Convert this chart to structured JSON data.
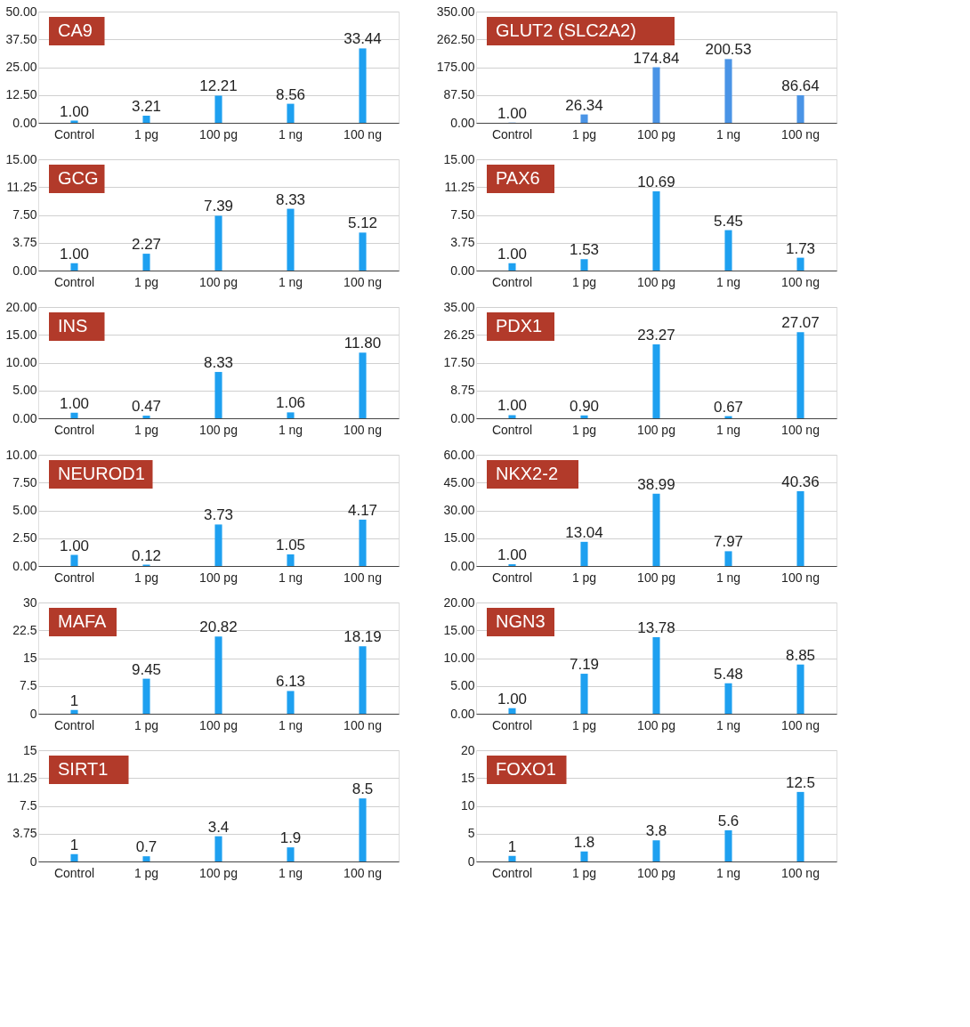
{
  "chart_data": [
    {
      "type": "bar",
      "title": "CA9",
      "categories": [
        "Control",
        "1 pg",
        "100 pg",
        "1 ng",
        "100 ng"
      ],
      "values": [
        1.0,
        3.21,
        12.21,
        8.56,
        33.44
      ],
      "value_labels": [
        "1.00",
        "3.21",
        "12.21",
        "8.56",
        "33.44"
      ],
      "color": "#1ea0f0",
      "ylim": [
        0,
        50
      ],
      "yticks": [
        {
          "value": 0,
          "label": "0.00"
        },
        {
          "value": 12.5,
          "label": "12.50"
        },
        {
          "value": 25,
          "label": "25.00"
        },
        {
          "value": 37.5,
          "label": "37.50"
        },
        {
          "value": 50,
          "label": "50.00"
        }
      ],
      "grid": "y"
    },
    {
      "type": "bar",
      "title": "GCG",
      "categories": [
        "Control",
        "1 pg",
        "100 pg",
        "1 ng",
        "100 ng"
      ],
      "values": [
        1.0,
        2.27,
        7.39,
        8.33,
        5.12
      ],
      "value_labels": [
        "1.00",
        "2.27",
        "7.39",
        "8.33",
        "5.12"
      ],
      "color": "#1ea0f0",
      "ylim": [
        0,
        15
      ],
      "yticks": [
        {
          "value": 0,
          "label": "0.00"
        },
        {
          "value": 3.75,
          "label": "3.75"
        },
        {
          "value": 7.5,
          "label": "7.50"
        },
        {
          "value": 11.25,
          "label": "11.25"
        },
        {
          "value": 15,
          "label": "15.00"
        }
      ],
      "grid": "y"
    },
    {
      "type": "bar",
      "title": "INS",
      "categories": [
        "Control",
        "1 pg",
        "100 pg",
        "1 ng",
        "100 ng"
      ],
      "values": [
        1.0,
        0.47,
        8.33,
        1.06,
        11.8
      ],
      "value_labels": [
        "1.00",
        "0.47",
        "8.33",
        "1.06",
        "11.80"
      ],
      "color": "#1ea0f0",
      "ylim": [
        0,
        20
      ],
      "yticks": [
        {
          "value": 0,
          "label": "0.00"
        },
        {
          "value": 5,
          "label": "5.00"
        },
        {
          "value": 10,
          "label": "10.00"
        },
        {
          "value": 15,
          "label": "15.00"
        },
        {
          "value": 20,
          "label": "20.00"
        }
      ],
      "grid": "y"
    },
    {
      "type": "bar",
      "title": "NEUROD1",
      "categories": [
        "Control",
        "1 pg",
        "100 pg",
        "1 ng",
        "100 ng"
      ],
      "values": [
        1.0,
        0.12,
        3.73,
        1.05,
        4.17
      ],
      "value_labels": [
        "1.00",
        "0.12",
        "3.73",
        "1.05",
        "4.17"
      ],
      "color": "#1ea0f0",
      "ylim": [
        0,
        10
      ],
      "yticks": [
        {
          "value": 0,
          "label": "0.00"
        },
        {
          "value": 2.5,
          "label": "2.50"
        },
        {
          "value": 5,
          "label": "5.00"
        },
        {
          "value": 7.5,
          "label": "7.50"
        },
        {
          "value": 10,
          "label": "10.00"
        }
      ],
      "grid": "y"
    },
    {
      "type": "bar",
      "title": "MAFA",
      "categories": [
        "Control",
        "1 pg",
        "100 pg",
        "1 ng",
        "100 ng"
      ],
      "values": [
        1,
        9.45,
        20.82,
        6.13,
        18.19
      ],
      "value_labels": [
        "1",
        "9.45",
        "20.82",
        "6.13",
        "18.19"
      ],
      "color": "#1ea0f0",
      "ylim": [
        0,
        30
      ],
      "yticks": [
        0,
        7.5,
        15,
        22.5,
        30
      ],
      "grid": "y"
    },
    {
      "type": "bar",
      "title": "SIRT1",
      "categories": [
        "Control",
        "1 pg",
        "100 pg",
        "1 ng",
        "100 ng"
      ],
      "values": [
        1,
        0.7,
        3.4,
        1.9,
        8.5
      ],
      "value_labels": [
        "1",
        "0.7",
        "3.4",
        "1.9",
        "8.5"
      ],
      "color": "#1ea0f0",
      "ylim": [
        0,
        15
      ],
      "yticks": [
        0,
        3.75,
        7.5,
        11.25,
        15
      ],
      "grid": "y"
    },
    {
      "type": "bar",
      "title": "GLUT2 (SLC2A2)",
      "categories": [
        "Control",
        "1 pg",
        "100 pg",
        "1 ng",
        "100 ng"
      ],
      "values": [
        1.0,
        26.34,
        174.84,
        200.53,
        86.64
      ],
      "value_labels": [
        "1.00",
        "26.34",
        "174.84",
        "200.53",
        "86.64"
      ],
      "color": "#4a94e6",
      "ylim": [
        0,
        350
      ],
      "yticks": [
        {
          "value": 0,
          "label": "0.00"
        },
        {
          "value": 87.5,
          "label": "87.50"
        },
        {
          "value": 175,
          "label": "175.00"
        },
        {
          "value": 262.5,
          "label": "262.50"
        },
        {
          "value": 350,
          "label": "350.00"
        }
      ],
      "grid": "y"
    },
    {
      "type": "bar",
      "title": "PAX6",
      "categories": [
        "Control",
        "1 pg",
        "100 pg",
        "1 ng",
        "100 ng"
      ],
      "values": [
        1.0,
        1.53,
        10.69,
        5.45,
        1.73
      ],
      "value_labels": [
        "1.00",
        "1.53",
        "10.69",
        "5.45",
        "1.73"
      ],
      "color": "#1ea0f0",
      "ylim": [
        0,
        15
      ],
      "yticks": [
        {
          "value": 0,
          "label": "0.00"
        },
        {
          "value": 3.75,
          "label": "3.75"
        },
        {
          "value": 7.5,
          "label": "7.50"
        },
        {
          "value": 11.25,
          "label": "11.25"
        },
        {
          "value": 15,
          "label": "15.00"
        }
      ],
      "grid": "y"
    },
    {
      "type": "bar",
      "title": "PDX1",
      "categories": [
        "Control",
        "1 pg",
        "100 pg",
        "1 ng",
        "100 ng"
      ],
      "values": [
        1.0,
        0.9,
        23.27,
        0.67,
        27.07
      ],
      "value_labels": [
        "1.00",
        "0.90",
        "23.27",
        "0.67",
        "27.07"
      ],
      "color": "#1ea0f0",
      "ylim": [
        0,
        35
      ],
      "yticks": [
        {
          "value": 0,
          "label": "0.00"
        },
        {
          "value": 8.75,
          "label": "8.75"
        },
        {
          "value": 17.5,
          "label": "17.50"
        },
        {
          "value": 26.25,
          "label": "26.25"
        },
        {
          "value": 35,
          "label": "35.00"
        }
      ],
      "grid": "y"
    },
    {
      "type": "bar",
      "title": "NKX2-2",
      "categories": [
        "Control",
        "1 pg",
        "100 pg",
        "1 ng",
        "100 ng"
      ],
      "values": [
        1.0,
        13.04,
        38.99,
        7.97,
        40.36
      ],
      "value_labels": [
        "1.00",
        "13.04",
        "38.99",
        "7.97",
        "40.36"
      ],
      "color": "#1ea0f0",
      "ylim": [
        0,
        60
      ],
      "yticks": [
        {
          "value": 0,
          "label": "0.00"
        },
        {
          "value": 15,
          "label": "15.00"
        },
        {
          "value": 30,
          "label": "30.00"
        },
        {
          "value": 45,
          "label": "45.00"
        },
        {
          "value": 60,
          "label": "60.00"
        }
      ],
      "grid": "y"
    },
    {
      "type": "bar",
      "title": "NGN3",
      "categories": [
        "Control",
        "1 pg",
        "100 pg",
        "1 ng",
        "100 ng"
      ],
      "values": [
        1.0,
        7.19,
        13.78,
        5.48,
        8.85
      ],
      "value_labels": [
        "1.00",
        "7.19",
        "13.78",
        "5.48",
        "8.85"
      ],
      "color": "#1ea0f0",
      "ylim": [
        0,
        20
      ],
      "yticks": [
        {
          "value": 0,
          "label": "0.00"
        },
        {
          "value": 5,
          "label": "5.00"
        },
        {
          "value": 10,
          "label": "10.00"
        },
        {
          "value": 15,
          "label": "15.00"
        },
        {
          "value": 20,
          "label": "20.00"
        }
      ],
      "grid": "y"
    },
    {
      "type": "bar",
      "title": "FOXO1",
      "categories": [
        "Control",
        "1 pg",
        "100 pg",
        "1 ng",
        "100 ng"
      ],
      "values": [
        1,
        1.8,
        3.8,
        5.6,
        12.5
      ],
      "value_labels": [
        "1",
        "1.8",
        "3.8",
        "5.6",
        "12.5"
      ],
      "color": "#1ea0f0",
      "ylim": [
        0,
        20
      ],
      "yticks": [
        0,
        5,
        10,
        15,
        20
      ],
      "grid": "y"
    }
  ]
}
